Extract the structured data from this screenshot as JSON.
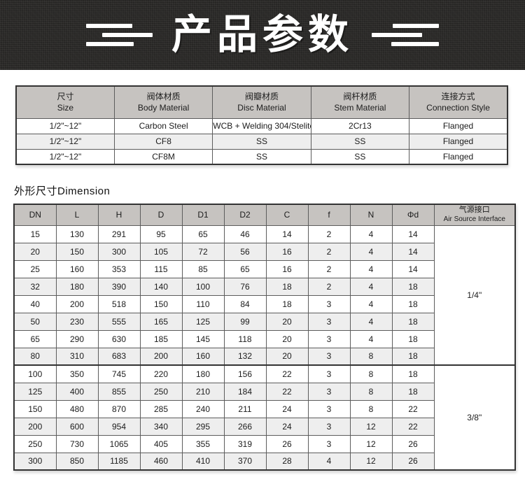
{
  "banner": {
    "title": "产品参数"
  },
  "colors": {
    "banner_bg": "#2d2c2a",
    "banner_text": "#ffffff",
    "header_bg": "#c6c3c0",
    "row_alt_bg": "#eeeeee",
    "border": "#5c5c5c",
    "outer_border": "#333333"
  },
  "materials_table": {
    "headers": [
      {
        "zh": "尺寸",
        "en": "Size"
      },
      {
        "zh": "阀体材质",
        "en": "Body Material"
      },
      {
        "zh": "阀瓣材质",
        "en": "Disc Material"
      },
      {
        "zh": "阀杆材质",
        "en": "Stem Material"
      },
      {
        "zh": "连接方式",
        "en": "Connection Style"
      }
    ],
    "rows": [
      [
        "1/2\"~12\"",
        "Carbon Steel",
        "WCB + Welding 304/Stelite",
        "2Cr13",
        "Flanged"
      ],
      [
        "1/2\"~12\"",
        "CF8",
        "SS",
        "SS",
        "Flanged"
      ],
      [
        "1/2\"~12\"",
        "CF8M",
        "SS",
        "SS",
        "Flanged"
      ]
    ]
  },
  "dimension_section": {
    "title": "外形尺寸Dimension",
    "column_headers": [
      "DN",
      "L",
      "H",
      "D",
      "D1",
      "D2",
      "C",
      "f",
      "N",
      "Φd"
    ],
    "air_header": {
      "zh": "气源接口",
      "en": "Air Source Interface"
    },
    "groups": [
      {
        "air_source": "1/4\"",
        "rows": [
          [
            "15",
            "130",
            "291",
            "95",
            "65",
            "46",
            "14",
            "2",
            "4",
            "14"
          ],
          [
            "20",
            "150",
            "300",
            "105",
            "72",
            "56",
            "16",
            "2",
            "4",
            "14"
          ],
          [
            "25",
            "160",
            "353",
            "115",
            "85",
            "65",
            "16",
            "2",
            "4",
            "14"
          ],
          [
            "32",
            "180",
            "390",
            "140",
            "100",
            "76",
            "18",
            "2",
            "4",
            "18"
          ],
          [
            "40",
            "200",
            "518",
            "150",
            "110",
            "84",
            "18",
            "3",
            "4",
            "18"
          ],
          [
            "50",
            "230",
            "555",
            "165",
            "125",
            "99",
            "20",
            "3",
            "4",
            "18"
          ],
          [
            "65",
            "290",
            "630",
            "185",
            "145",
            "118",
            "20",
            "3",
            "4",
            "18"
          ],
          [
            "80",
            "310",
            "683",
            "200",
            "160",
            "132",
            "20",
            "3",
            "8",
            "18"
          ]
        ]
      },
      {
        "air_source": "3/8\"",
        "rows": [
          [
            "100",
            "350",
            "745",
            "220",
            "180",
            "156",
            "22",
            "3",
            "8",
            "18"
          ],
          [
            "125",
            "400",
            "855",
            "250",
            "210",
            "184",
            "22",
            "3",
            "8",
            "18"
          ],
          [
            "150",
            "480",
            "870",
            "285",
            "240",
            "211",
            "24",
            "3",
            "8",
            "22"
          ],
          [
            "200",
            "600",
            "954",
            "340",
            "295",
            "266",
            "24",
            "3",
            "12",
            "22"
          ],
          [
            "250",
            "730",
            "1065",
            "405",
            "355",
            "319",
            "26",
            "3",
            "12",
            "26"
          ],
          [
            "300",
            "850",
            "1185",
            "460",
            "410",
            "370",
            "28",
            "4",
            "12",
            "26"
          ]
        ]
      }
    ]
  }
}
